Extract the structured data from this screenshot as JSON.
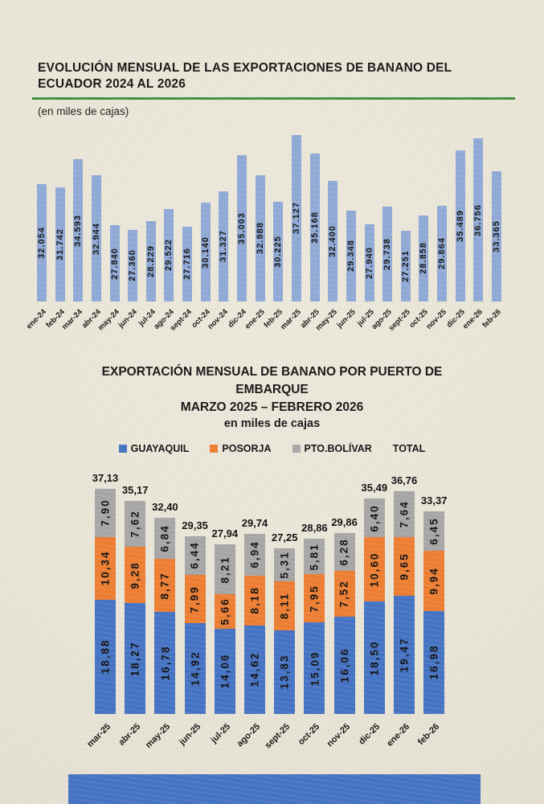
{
  "document": {
    "title1": "EVOLUCIÓN MENSUAL DE LAS EXPORTACIONES DE BANANO DEL ECUADOR 2024 AL 2026",
    "subtitle1": "(en miles de cajas)",
    "accent_rule_color": "#3e8e41",
    "bottom_bar_color": "#4472c4"
  },
  "chart_data": [
    {
      "type": "bar",
      "title": "EVOLUCIÓN MENSUAL DE LAS EXPORTACIONES DE BANANO DEL ECUADOR 2024 AL 2026",
      "unit": "en miles de cajas",
      "categories": [
        "ene-24",
        "feb-24",
        "mar-24",
        "abr-24",
        "may-24",
        "jun-24",
        "jul-24",
        "ago-24",
        "sept-24",
        "oct-24",
        "nov-24",
        "dic-24",
        "ene-25",
        "feb-25",
        "mar-25",
        "abr-25",
        "may-25",
        "jun-25",
        "jul-25",
        "ago-25",
        "sept-25",
        "oct-25",
        "nov-25",
        "dic-25",
        "ene-26",
        "feb-26"
      ],
      "values": [
        32.054,
        31.742,
        34.593,
        32.944,
        27.84,
        27.36,
        28.229,
        29.522,
        27.716,
        30.14,
        31.327,
        35.003,
        32.988,
        30.225,
        37.127,
        35.168,
        32.4,
        29.348,
        27.94,
        29.738,
        27.251,
        28.858,
        29.864,
        35.489,
        36.756,
        33.365
      ],
      "value_labels": [
        "32.054",
        "31.742",
        "34.593",
        "32.944",
        "27.840",
        "27.360",
        "28.229",
        "29.522",
        "27.716",
        "30.140",
        "31.327",
        "35.003",
        "32.988",
        "30.225",
        "37.127",
        "35.168",
        "32.400",
        "29.348",
        "27.940",
        "29.738",
        "27.251",
        "28.858",
        "29.864",
        "35.489",
        "36.756",
        "33.365"
      ],
      "bar_color": "#8fa9d6",
      "ylim": [
        20,
        38
      ],
      "grid": false,
      "legend_position": "none"
    },
    {
      "type": "stacked-bar",
      "title": "EXPORTACIÓN MENSUAL DE BANANO POR PUERTO DE EMBARQUE",
      "subtitle": "MARZO 2025 – FEBRERO 2026",
      "unit": "en miles de cajas",
      "categories": [
        "mar-25",
        "abr-25",
        "may-25",
        "jun-25",
        "jul-25",
        "ago-25",
        "sept-25",
        "oct-25",
        "nov-25",
        "dic-25",
        "ene-26",
        "feb-26"
      ],
      "series": [
        {
          "name": "GUAYAQUIL",
          "color": "#4472c4",
          "values": [
            18.88,
            18.27,
            16.78,
            14.92,
            14.06,
            14.62,
            13.83,
            15.09,
            16.06,
            18.5,
            19.47,
            16.98
          ],
          "value_labels": [
            "18,88",
            "18,27",
            "16,78",
            "14,92",
            "14,06",
            "14,62",
            "13,83",
            "15,09",
            "16,06",
            "18,50",
            "19,47",
            "16,98"
          ]
        },
        {
          "name": "POSORJA",
          "color": "#ed7d31",
          "values": [
            10.34,
            9.28,
            8.77,
            7.99,
            5.66,
            8.18,
            8.11,
            7.95,
            7.52,
            10.6,
            9.65,
            9.94
          ],
          "value_labels": [
            "10,34",
            "9,28",
            "8,77",
            "7,99",
            "5,66",
            "8,18",
            "8,11",
            "7,95",
            "7,52",
            "10,60",
            "9,65",
            "9,94"
          ]
        },
        {
          "name": "PTO.BOLÍVAR",
          "color": "#a6a6a6",
          "values": [
            7.9,
            7.62,
            6.84,
            6.44,
            8.21,
            6.94,
            5.31,
            5.81,
            6.28,
            6.4,
            7.64,
            6.45
          ],
          "value_labels": [
            "7,90",
            "7,62",
            "6,84",
            "6,44",
            "8,21",
            "6,94",
            "5,31",
            "5,81",
            "6,28",
            "6,40",
            "7,64",
            "6,45"
          ]
        }
      ],
      "totals": [
        37.13,
        35.17,
        32.4,
        29.35,
        27.94,
        29.74,
        27.25,
        28.86,
        29.86,
        35.49,
        36.76,
        33.37
      ],
      "total_labels": [
        "37,13",
        "35,17",
        "32,40",
        "29,35",
        "27,94",
        "29,74",
        "27,25",
        "28,86",
        "29,86",
        "35,49",
        "36,76",
        "33,37"
      ],
      "legend": [
        {
          "label": "GUAYAQUIL",
          "color": "#4472c4"
        },
        {
          "label": "POSORJA",
          "color": "#ed7d31"
        },
        {
          "label": "PTO.BOLÍVAR",
          "color": "#a6a6a6"
        },
        {
          "label": "TOTAL",
          "color": null
        }
      ],
      "ylim": [
        0,
        40
      ],
      "grid": false,
      "legend_position": "top"
    }
  ]
}
